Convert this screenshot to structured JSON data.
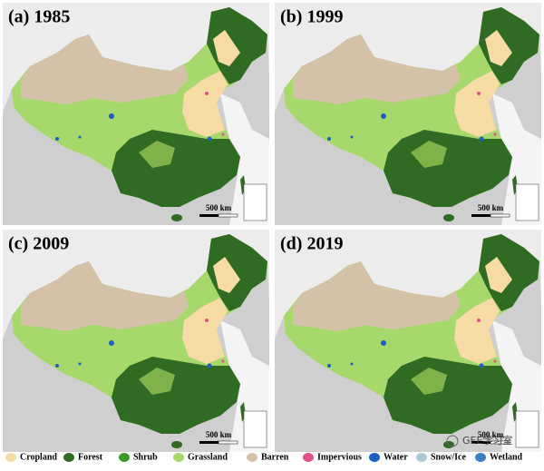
{
  "panels": [
    {
      "title": "(a) 1985",
      "scale": "500 km"
    },
    {
      "title": "(b) 1999",
      "scale": "500 km"
    },
    {
      "title": "(c) 2009",
      "scale": "500 km"
    },
    {
      "title": "(d) 2019",
      "scale": "500 km"
    }
  ],
  "legend": [
    {
      "label": "Cropland",
      "color": "#f6dba5"
    },
    {
      "label": "Forest",
      "color": "#2f6b22"
    },
    {
      "label": "Shrub",
      "color": "#3c9a2c"
    },
    {
      "label": "Grassland",
      "color": "#a7d86c"
    },
    {
      "label": "Barren",
      "color": "#d4c2a8"
    },
    {
      "label": "Impervious",
      "color": "#e4508a"
    },
    {
      "label": "Water",
      "color": "#1d5fc0"
    },
    {
      "label": "Snow/Ice",
      "color": "#a9c9d9"
    },
    {
      "label": "Wetland",
      "color": "#3b7fc2"
    }
  ],
  "watermark": "GEE学习室"
}
